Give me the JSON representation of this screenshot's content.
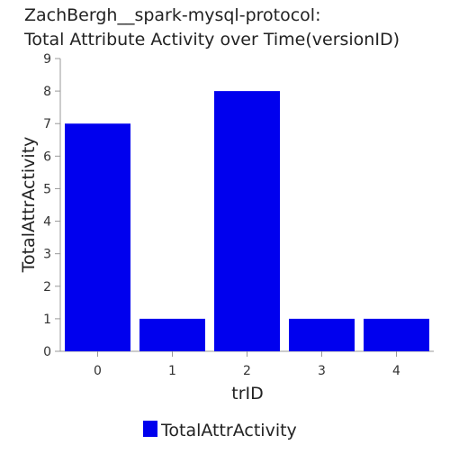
{
  "chart_data": {
    "type": "bar",
    "title_lines": [
      "ZachBergh__spark-mysql-protocol:",
      "Total Attribute Activity over Time(versionID)"
    ],
    "xlabel": "trID",
    "ylabel": "TotalAttrActivity",
    "categories": [
      "0",
      "1",
      "2",
      "3",
      "4"
    ],
    "series": [
      {
        "name": "TotalAttrActivity",
        "values": [
          7,
          1,
          8,
          1,
          1
        ],
        "color": "#0000ee"
      }
    ],
    "ylim": [
      0,
      9
    ],
    "yticks": [
      0,
      1,
      2,
      3,
      4,
      5,
      6,
      7,
      8,
      9
    ],
    "grid": false,
    "legend_position": "bottom"
  }
}
